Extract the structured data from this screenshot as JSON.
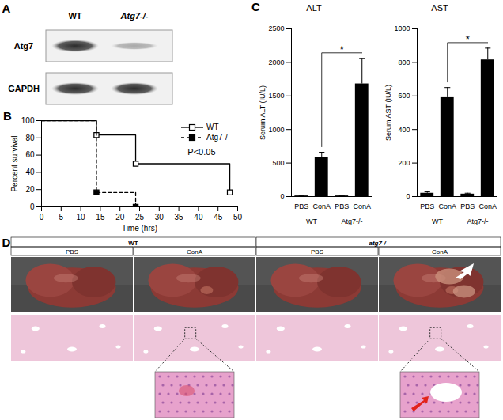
{
  "panels": {
    "A": {
      "label": "A",
      "columns": [
        "WT",
        "Atg7-/-"
      ],
      "rows": [
        "Atg7",
        "GAPDH"
      ]
    },
    "D": {
      "label": "D",
      "groups": [
        "WT",
        "atg7-/-"
      ],
      "columns": [
        "PBS",
        "ConA",
        "PBS",
        "ConA"
      ]
    }
  },
  "chart_data": [
    {
      "panel_label": "B",
      "type": "step",
      "xlabel": "Time (hrs)",
      "ylabel": "Percent survival",
      "xlim": [
        0,
        50
      ],
      "xticks": [
        0,
        5,
        10,
        15,
        20,
        25,
        30,
        35,
        40,
        45,
        50
      ],
      "ylim": [
        0,
        100
      ],
      "yticks": [
        0,
        20,
        40,
        60,
        80,
        100
      ],
      "annotations": [
        "P<0.05"
      ],
      "legend": "top-right",
      "series": [
        {
          "name": "WT",
          "color": "#000000",
          "marker": "open-square",
          "line_style": "solid",
          "x": [
            0,
            14,
            24,
            48
          ],
          "values": [
            100,
            83.3,
            50,
            16.7
          ]
        },
        {
          "name": "Atg7-/-",
          "color": "#000000",
          "marker": "square",
          "line_style": "dashed",
          "x": [
            0,
            14,
            24
          ],
          "values": [
            100,
            16.7,
            0
          ]
        }
      ]
    },
    {
      "panel_label": "C",
      "type": "bar",
      "title": "ALT",
      "ylabel": "Serum ALT (IU/L)",
      "categories": [
        "PBS",
        "ConA",
        "PBS",
        "ConA"
      ],
      "groups": [
        "WT",
        "WT",
        "Atg7-/-",
        "Atg7-/-"
      ],
      "values": [
        10,
        580,
        10,
        1680
      ],
      "errors": [
        5,
        80,
        5,
        380
      ],
      "color": "#000000",
      "ylim": [
        0,
        2500
      ],
      "yticks": [
        0,
        500,
        1000,
        1500,
        2000,
        2500
      ],
      "significance": [
        {
          "label": "*",
          "positions": [
            1,
            3
          ]
        }
      ]
    },
    {
      "type": "bar",
      "title": "AST",
      "ylabel": "Serum AST (IU/L)",
      "categories": [
        "PBS",
        "ConA",
        "PBS",
        "ConA"
      ],
      "groups": [
        "WT",
        "WT",
        "Atg7-/-",
        "Atg7-/-"
      ],
      "values": [
        20,
        590,
        15,
        815
      ],
      "errors": [
        8,
        60,
        5,
        70
      ],
      "color": "#000000",
      "ylim": [
        0,
        1000
      ],
      "yticks": [
        0,
        200,
        400,
        600,
        800,
        1000
      ],
      "significance": [
        {
          "label": "*",
          "positions": [
            1,
            3
          ]
        }
      ]
    }
  ]
}
